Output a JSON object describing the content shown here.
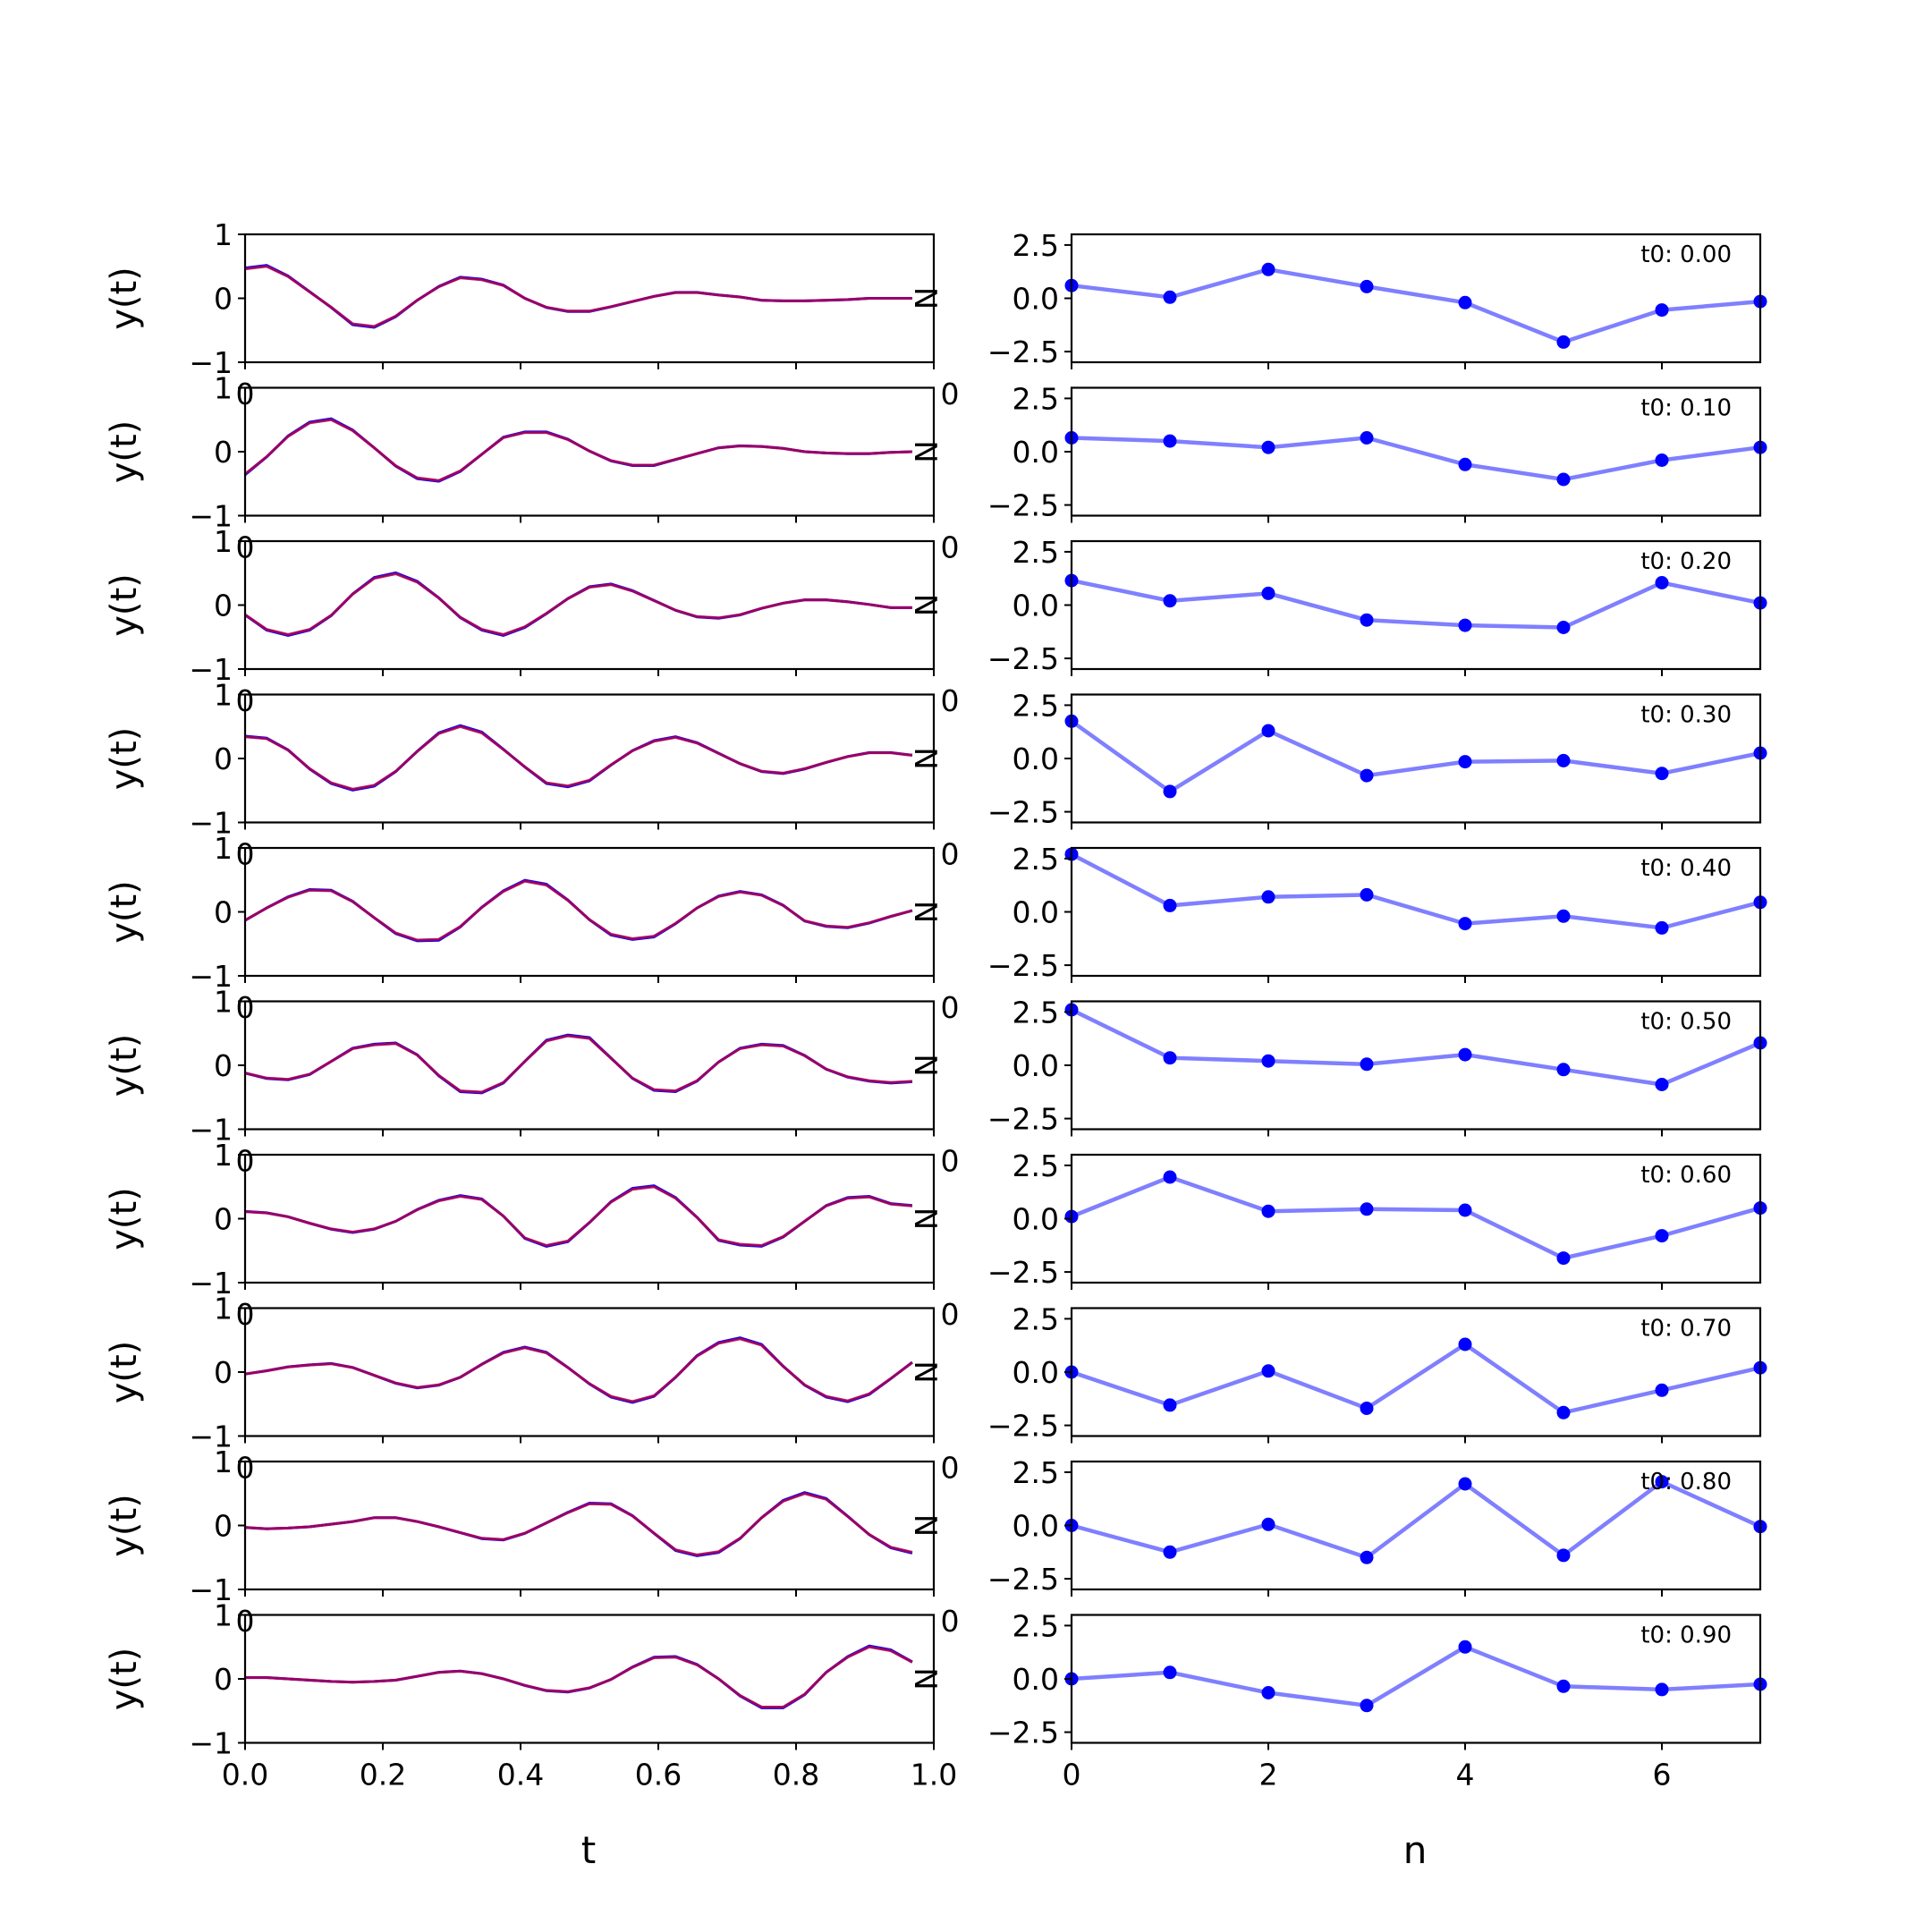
{
  "chart_data": [
    {
      "type": "line",
      "panel": "left",
      "xlabel": "t",
      "ylabel": "y(t)",
      "xlim": [
        0,
        1
      ],
      "ylim": [
        -1,
        1
      ],
      "xticks": [
        "0.0",
        "0.2",
        "0.4",
        "0.6",
        "0.8",
        "1.0"
      ],
      "yticks": [
        "-1",
        "0",
        "1"
      ],
      "overlap_label": "N",
      "colors": {
        "series_a": "#0000ff",
        "series_b": "#ff0000",
        "overlap": "#7f007f"
      },
      "t": [
        0,
        0.03125,
        0.0625,
        0.09375,
        0.125,
        0.15625,
        0.1875,
        0.21875,
        0.25,
        0.28125,
        0.3125,
        0.34375,
        0.375,
        0.40625,
        0.4375,
        0.46875,
        0.5,
        0.53125,
        0.5625,
        0.59375,
        0.625,
        0.65625,
        0.6875,
        0.71875,
        0.75,
        0.78125,
        0.8125,
        0.84375,
        0.875,
        0.90625,
        0.9375,
        0.96875
      ],
      "rows": [
        {
          "values": [
            0.46,
            0.5,
            0.34,
            0.1,
            -0.14,
            -0.4,
            -0.44,
            -0.28,
            -0.03,
            0.18,
            0.32,
            0.29,
            0.2,
            0.0,
            -0.14,
            -0.2,
            -0.2,
            -0.13,
            -0.05,
            0.03,
            0.09,
            0.09,
            0.05,
            0.02,
            -0.03,
            -0.04,
            -0.04,
            -0.03,
            -0.02,
            0.0,
            0.0,
            0.0
          ]
        },
        {
          "values": [
            -0.35,
            -0.08,
            0.24,
            0.45,
            0.5,
            0.33,
            0.06,
            -0.22,
            -0.41,
            -0.45,
            -0.3,
            -0.04,
            0.22,
            0.3,
            0.3,
            0.19,
            0.01,
            -0.14,
            -0.21,
            -0.21,
            -0.12,
            -0.03,
            0.06,
            0.09,
            0.08,
            0.05,
            0.0,
            -0.02,
            -0.03,
            -0.03,
            -0.01,
            0.0
          ]
        },
        {
          "values": [
            -0.15,
            -0.38,
            -0.46,
            -0.38,
            -0.16,
            0.17,
            0.42,
            0.49,
            0.36,
            0.11,
            -0.19,
            -0.38,
            -0.46,
            -0.34,
            -0.13,
            0.1,
            0.28,
            0.32,
            0.22,
            0.07,
            -0.08,
            -0.18,
            -0.2,
            -0.15,
            -0.05,
            0.03,
            0.08,
            0.08,
            0.05,
            0.01,
            -0.04,
            -0.04
          ]
        },
        {
          "values": [
            0.34,
            0.31,
            0.13,
            -0.16,
            -0.38,
            -0.48,
            -0.42,
            -0.2,
            0.11,
            0.39,
            0.5,
            0.4,
            0.14,
            -0.13,
            -0.38,
            -0.43,
            -0.34,
            -0.1,
            0.12,
            0.27,
            0.33,
            0.24,
            0.08,
            -0.08,
            -0.2,
            -0.23,
            -0.16,
            -0.06,
            0.03,
            0.09,
            0.09,
            0.05
          ]
        },
        {
          "values": [
            -0.13,
            0.06,
            0.23,
            0.34,
            0.33,
            0.16,
            -0.09,
            -0.33,
            -0.44,
            -0.43,
            -0.23,
            0.07,
            0.32,
            0.48,
            0.42,
            0.18,
            -0.12,
            -0.35,
            -0.42,
            -0.38,
            -0.18,
            0.06,
            0.24,
            0.31,
            0.26,
            0.1,
            -0.14,
            -0.22,
            -0.24,
            -0.17,
            -0.07,
            0.02
          ]
        },
        {
          "values": [
            -0.12,
            -0.2,
            -0.22,
            -0.14,
            0.06,
            0.26,
            0.32,
            0.34,
            0.16,
            -0.16,
            -0.4,
            -0.42,
            -0.27,
            0.06,
            0.38,
            0.46,
            0.42,
            0.11,
            -0.2,
            -0.38,
            -0.4,
            -0.24,
            0.05,
            0.26,
            0.32,
            0.3,
            0.15,
            -0.06,
            -0.18,
            -0.24,
            -0.27,
            -0.25
          ]
        },
        {
          "values": [
            0.11,
            0.09,
            0.03,
            -0.07,
            -0.16,
            -0.21,
            -0.16,
            -0.04,
            0.14,
            0.28,
            0.35,
            0.3,
            0.04,
            -0.3,
            -0.42,
            -0.35,
            -0.06,
            0.26,
            0.46,
            0.5,
            0.32,
            0.02,
            -0.33,
            -0.4,
            -0.42,
            -0.28,
            -0.04,
            0.2,
            0.32,
            0.34,
            0.23,
            0.2
          ]
        },
        {
          "values": [
            -0.03,
            0.02,
            0.08,
            0.11,
            0.13,
            0.07,
            -0.05,
            -0.17,
            -0.24,
            -0.2,
            -0.08,
            0.12,
            0.3,
            0.38,
            0.3,
            0.07,
            -0.18,
            -0.38,
            -0.46,
            -0.37,
            -0.08,
            0.25,
            0.45,
            0.52,
            0.42,
            0.09,
            -0.2,
            -0.38,
            -0.45,
            -0.34,
            -0.1,
            0.15
          ]
        },
        {
          "values": [
            -0.03,
            -0.05,
            -0.04,
            -0.02,
            0.02,
            0.06,
            0.12,
            0.12,
            0.06,
            -0.02,
            -0.11,
            -0.2,
            -0.22,
            -0.12,
            0.04,
            0.2,
            0.34,
            0.33,
            0.15,
            -0.12,
            -0.38,
            -0.46,
            -0.41,
            -0.2,
            0.12,
            0.38,
            0.5,
            0.41,
            0.14,
            -0.14,
            -0.34,
            -0.42
          ]
        },
        {
          "values": [
            0.02,
            0.02,
            0.0,
            -0.02,
            -0.04,
            -0.05,
            -0.04,
            -0.02,
            0.04,
            0.1,
            0.12,
            0.08,
            0.0,
            -0.1,
            -0.18,
            -0.2,
            -0.14,
            -0.01,
            0.18,
            0.33,
            0.34,
            0.22,
            0.0,
            -0.26,
            -0.44,
            -0.44,
            -0.24,
            0.1,
            0.34,
            0.5,
            0.44,
            0.26
          ]
        }
      ]
    },
    {
      "type": "line",
      "panel": "right",
      "xlabel": "n",
      "ylabel": "",
      "xlim": [
        0,
        7
      ],
      "ylim": [
        -3,
        3
      ],
      "xticks": [
        "0",
        "2",
        "4",
        "6"
      ],
      "yticks": [
        "2.5",
        "0.0",
        "-2.5"
      ],
      "color": "#0000ff",
      "n": [
        0,
        1,
        2,
        3,
        4,
        5,
        6,
        7
      ],
      "rows": [
        {
          "label": "t0: 0.00",
          "values": [
            0.6,
            0.05,
            1.35,
            0.55,
            -0.2,
            -2.05,
            -0.55,
            -0.15
          ]
        },
        {
          "label": "t0: 0.10",
          "values": [
            0.65,
            0.5,
            0.2,
            0.65,
            -0.6,
            -1.3,
            -0.4,
            0.2
          ]
        },
        {
          "label": "t0: 0.20",
          "values": [
            1.15,
            0.2,
            0.55,
            -0.7,
            -0.95,
            -1.05,
            1.05,
            0.1
          ]
        },
        {
          "label": "t0: 0.30",
          "values": [
            1.75,
            -1.55,
            1.3,
            -0.8,
            -0.15,
            -0.1,
            -0.7,
            0.25
          ]
        },
        {
          "label": "t0: 0.40",
          "values": [
            2.7,
            0.3,
            0.7,
            0.8,
            -0.55,
            -0.2,
            -0.75,
            0.45
          ]
        },
        {
          "label": "t0: 0.50",
          "values": [
            2.6,
            0.35,
            0.2,
            0.05,
            0.5,
            -0.2,
            -0.9,
            1.05
          ]
        },
        {
          "label": "t0: 0.60",
          "values": [
            0.1,
            1.95,
            0.35,
            0.45,
            0.4,
            -1.85,
            -0.8,
            0.5
          ]
        },
        {
          "label": "t0: 0.70",
          "values": [
            0.0,
            -1.55,
            0.05,
            -1.7,
            1.3,
            -1.9,
            -0.85,
            0.2
          ]
        },
        {
          "label": "t0: 0.80",
          "values": [
            0.0,
            -1.25,
            0.05,
            -1.5,
            1.95,
            -1.4,
            2.05,
            -0.05
          ]
        },
        {
          "label": "t0: 0.90",
          "values": [
            0.0,
            0.3,
            -0.65,
            -1.25,
            1.5,
            -0.35,
            -0.5,
            -0.25
          ]
        }
      ]
    }
  ]
}
